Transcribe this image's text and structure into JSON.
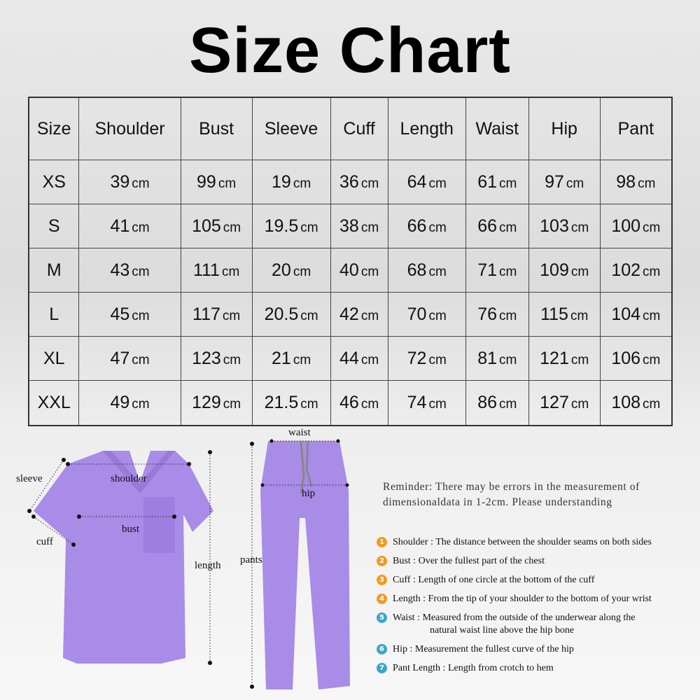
{
  "title": "Size Chart",
  "table": {
    "headers": [
      "Size",
      "Shoulder",
      "Bust",
      "Sleeve",
      "Cuff",
      "Length",
      "Waist",
      "Hip",
      "Pant"
    ],
    "unit": "cm",
    "rows": [
      [
        "XS",
        "39",
        "99",
        "19",
        "36",
        "64",
        "61",
        "97",
        "98"
      ],
      [
        "S",
        "41",
        "105",
        "19.5",
        "38",
        "66",
        "66",
        "103",
        "100"
      ],
      [
        "M",
        "43",
        "111",
        "20",
        "40",
        "68",
        "71",
        "109",
        "102"
      ],
      [
        "L",
        "45",
        "117",
        "20.5",
        "42",
        "70",
        "76",
        "115",
        "104"
      ],
      [
        "XL",
        "47",
        "123",
        "21",
        "44",
        "72",
        "81",
        "121",
        "106"
      ],
      [
        "XXL",
        "49",
        "129",
        "21.5",
        "46",
        "74",
        "86",
        "127",
        "108"
      ]
    ]
  },
  "diagram": {
    "garment_color": "#a98be8",
    "labels": {
      "sleeve": "sleeve",
      "shoulder": "shoulder",
      "bust": "bust",
      "cuff": "cuff",
      "length": "length",
      "waist": "waist",
      "hip": "hip",
      "pants": "pants"
    }
  },
  "reminder": "Reminder: There may be errors in the measurement of dimensionaldata in 1-2cm. Please understanding",
  "notes": [
    {
      "n": "1",
      "term": "Shoulder :",
      "text": "The distance between the shoulder seams on both sides",
      "color": "#f39a1e"
    },
    {
      "n": "2",
      "term": "Bust :",
      "text": "Over the fullest part of the chest",
      "color": "#f39a1e"
    },
    {
      "n": "3",
      "term": "Cuff :",
      "text": "Length of one circle at the bottom of the cuff",
      "color": "#f39a1e"
    },
    {
      "n": "4",
      "term": "Length :",
      "text": "From the tip of your shoulder to the bottom of your wrist",
      "color": "#f39a1e"
    },
    {
      "n": "5",
      "term": "Waist :",
      "text": "Measured from the outside of the underwear along the",
      "text2": "natural waist line above the hip bone",
      "color": "#3aa6c9"
    },
    {
      "n": "6",
      "term": "Hip :",
      "text": "Measurement the fullest curve of the hip",
      "color": "#3aa6c9"
    },
    {
      "n": "7",
      "term": "Pant Length :",
      "text": "Length from crotch to hem",
      "color": "#3aa6c9"
    }
  ]
}
